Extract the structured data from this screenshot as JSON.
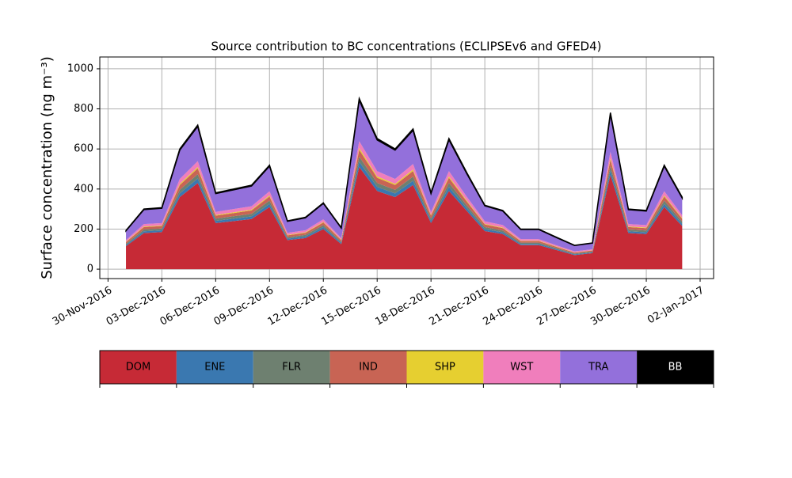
{
  "chart_data": {
    "type": "stacked_area",
    "title": "Source contribution to BC concentrations (ECLIPSEv6 and GFED4)",
    "y_label": "Surface concentration (ng m⁻³)",
    "x": [
      "2016-12-01",
      "2016-12-02",
      "2016-12-03",
      "2016-12-04",
      "2016-12-05",
      "2016-12-06",
      "2016-12-07",
      "2016-12-08",
      "2016-12-09",
      "2016-12-10",
      "2016-12-11",
      "2016-12-12",
      "2016-12-13",
      "2016-12-14",
      "2016-12-15",
      "2016-12-16",
      "2016-12-17",
      "2016-12-18",
      "2016-12-19",
      "2016-12-20",
      "2016-12-21",
      "2016-12-22",
      "2016-12-23",
      "2016-12-24",
      "2016-12-25",
      "2016-12-26",
      "2016-12-27",
      "2016-12-28",
      "2016-12-29",
      "2016-12-30",
      "2016-12-31",
      "2017-01-01"
    ],
    "series": [
      {
        "name": "DOM",
        "color": "#c62a36",
        "values": [
          115,
          180,
          185,
          360,
          430,
          230,
          240,
          250,
          310,
          145,
          155,
          200,
          125,
          510,
          390,
          360,
          420,
          230,
          390,
          290,
          190,
          175,
          120,
          120,
          95,
          70,
          80,
          470,
          180,
          175,
          310,
          215
        ]
      },
      {
        "name": "ENE",
        "color": "#3a78b0",
        "values": [
          6,
          9,
          9,
          18,
          22,
          11,
          12,
          13,
          16,
          7,
          8,
          10,
          6,
          26,
          20,
          18,
          21,
          11,
          20,
          14,
          10,
          9,
          6,
          6,
          5,
          4,
          4,
          23,
          9,
          9,
          16,
          11
        ]
      },
      {
        "name": "FLR",
        "color": "#6e8070",
        "values": [
          6,
          9,
          9,
          18,
          22,
          11,
          12,
          13,
          16,
          7,
          8,
          10,
          6,
          26,
          20,
          18,
          21,
          11,
          20,
          14,
          10,
          9,
          6,
          6,
          5,
          4,
          4,
          23,
          9,
          9,
          16,
          11
        ]
      },
      {
        "name": "IND",
        "color": "#c86454",
        "values": [
          8,
          12,
          12,
          24,
          29,
          15,
          16,
          17,
          21,
          10,
          10,
          13,
          8,
          34,
          26,
          24,
          28,
          15,
          26,
          19,
          13,
          12,
          8,
          8,
          6,
          5,
          5,
          31,
          12,
          12,
          21,
          14
        ]
      },
      {
        "name": "SHP",
        "color": "#e6cf30",
        "values": [
          2,
          3,
          3,
          6,
          7,
          4,
          4,
          4,
          5,
          2,
          3,
          3,
          2,
          9,
          7,
          6,
          7,
          4,
          7,
          5,
          3,
          3,
          2,
          2,
          2,
          1,
          1,
          8,
          3,
          3,
          5,
          4
        ]
      },
      {
        "name": "WST",
        "color": "#f07ebc",
        "values": [
          8,
          12,
          12,
          24,
          29,
          15,
          16,
          17,
          21,
          10,
          10,
          13,
          8,
          34,
          26,
          24,
          28,
          15,
          26,
          19,
          13,
          12,
          8,
          8,
          6,
          5,
          5,
          31,
          12,
          12,
          21,
          14
        ]
      },
      {
        "name": "TRA",
        "color": "#9370db",
        "values": [
          46,
          72,
          74,
          144,
          173,
          91,
          96,
          101,
          125,
          58,
          62,
          79,
          50,
          204,
          156,
          144,
          168,
          91,
          156,
          115,
          77,
          70,
          48,
          48,
          38,
          29,
          31,
          187,
          72,
          70,
          125,
          86
        ]
      },
      {
        "name": "BB",
        "color": "#000000",
        "values": [
          2,
          3,
          3,
          6,
          7,
          4,
          4,
          4,
          5,
          2,
          3,
          3,
          2,
          9,
          7,
          6,
          7,
          4,
          7,
          5,
          3,
          3,
          2,
          2,
          2,
          1,
          1,
          8,
          3,
          3,
          5,
          4
        ]
      }
    ],
    "xlim": [
      "2016-11-29T13:00",
      "2017-01-02T18:00"
    ],
    "xticks": [
      {
        "value": "2016-11-30",
        "label": "30-Nov-2016"
      },
      {
        "value": "2016-12-03",
        "label": "03-Dec-2016"
      },
      {
        "value": "2016-12-06",
        "label": "06-Dec-2016"
      },
      {
        "value": "2016-12-09",
        "label": "09-Dec-2016"
      },
      {
        "value": "2016-12-12",
        "label": "12-Dec-2016"
      },
      {
        "value": "2016-12-15",
        "label": "15-Dec-2016"
      },
      {
        "value": "2016-12-18",
        "label": "18-Dec-2016"
      },
      {
        "value": "2016-12-21",
        "label": "21-Dec-2016"
      },
      {
        "value": "2016-12-24",
        "label": "24-Dec-2016"
      },
      {
        "value": "2016-12-27",
        "label": "27-Dec-2016"
      },
      {
        "value": "2016-12-30",
        "label": "30-Dec-2016"
      },
      {
        "value": "2017-01-02",
        "label": "02-Jan-2017"
      }
    ],
    "ylim": [
      -47,
      1059
    ],
    "yticks": [
      0,
      200,
      400,
      600,
      800,
      1000
    ],
    "grid": true
  }
}
